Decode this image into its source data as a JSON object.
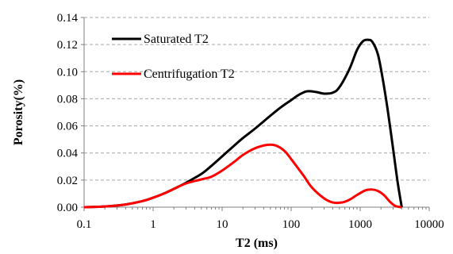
{
  "chart_data": {
    "type": "line",
    "xlabel": "T2 (ms)",
    "ylabel": "Porosity(%)",
    "xscale": "log",
    "xlim": [
      0.1,
      10000
    ],
    "ylim": [
      0,
      0.14
    ],
    "xticks": [
      "0.1",
      "1",
      "10",
      "100",
      "1000",
      "10000"
    ],
    "yticks": [
      "0.00",
      "0.02",
      "0.04",
      "0.06",
      "0.08",
      "0.10",
      "0.12",
      "0.14"
    ],
    "grid": "horizontal-dashed",
    "legend": "top-left",
    "series": [
      {
        "name": "Saturated T2",
        "color": "#000000",
        "x": [
          0.1,
          0.2,
          0.4,
          0.7,
          1,
          1.5,
          2,
          3,
          5,
          7,
          10,
          15,
          20,
          30,
          50,
          70,
          100,
          130,
          170,
          230,
          300,
          400,
          500,
          700,
          900,
          1100,
          1300,
          1500,
          1800,
          2100,
          2500,
          3000,
          3500,
          4000
        ],
        "y": [
          0.0,
          0.0005,
          0.002,
          0.0045,
          0.007,
          0.0105,
          0.0135,
          0.018,
          0.0245,
          0.0305,
          0.0375,
          0.0455,
          0.051,
          0.058,
          0.0675,
          0.0735,
          0.079,
          0.083,
          0.0855,
          0.085,
          0.0838,
          0.0845,
          0.0885,
          0.102,
          0.116,
          0.1225,
          0.1235,
          0.122,
          0.113,
          0.096,
          0.072,
          0.043,
          0.018,
          0.0
        ]
      },
      {
        "name": "Centrifugation T2",
        "color": "#ff0000",
        "x": [
          0.1,
          0.2,
          0.4,
          0.7,
          1,
          1.5,
          2,
          3,
          5,
          7,
          10,
          15,
          20,
          30,
          45,
          60,
          80,
          100,
          150,
          200,
          300,
          400,
          550,
          700,
          900,
          1200,
          1500,
          1800,
          2200,
          2700,
          3200,
          3700,
          4000
        ],
        "y": [
          0.0,
          0.0005,
          0.002,
          0.0045,
          0.007,
          0.0105,
          0.0135,
          0.0175,
          0.0205,
          0.0225,
          0.027,
          0.0335,
          0.0385,
          0.0435,
          0.046,
          0.0455,
          0.0415,
          0.0355,
          0.0235,
          0.0145,
          0.0065,
          0.0035,
          0.0035,
          0.0055,
          0.009,
          0.0125,
          0.013,
          0.012,
          0.009,
          0.004,
          0.001,
          0.0002,
          0.0
        ]
      }
    ]
  }
}
